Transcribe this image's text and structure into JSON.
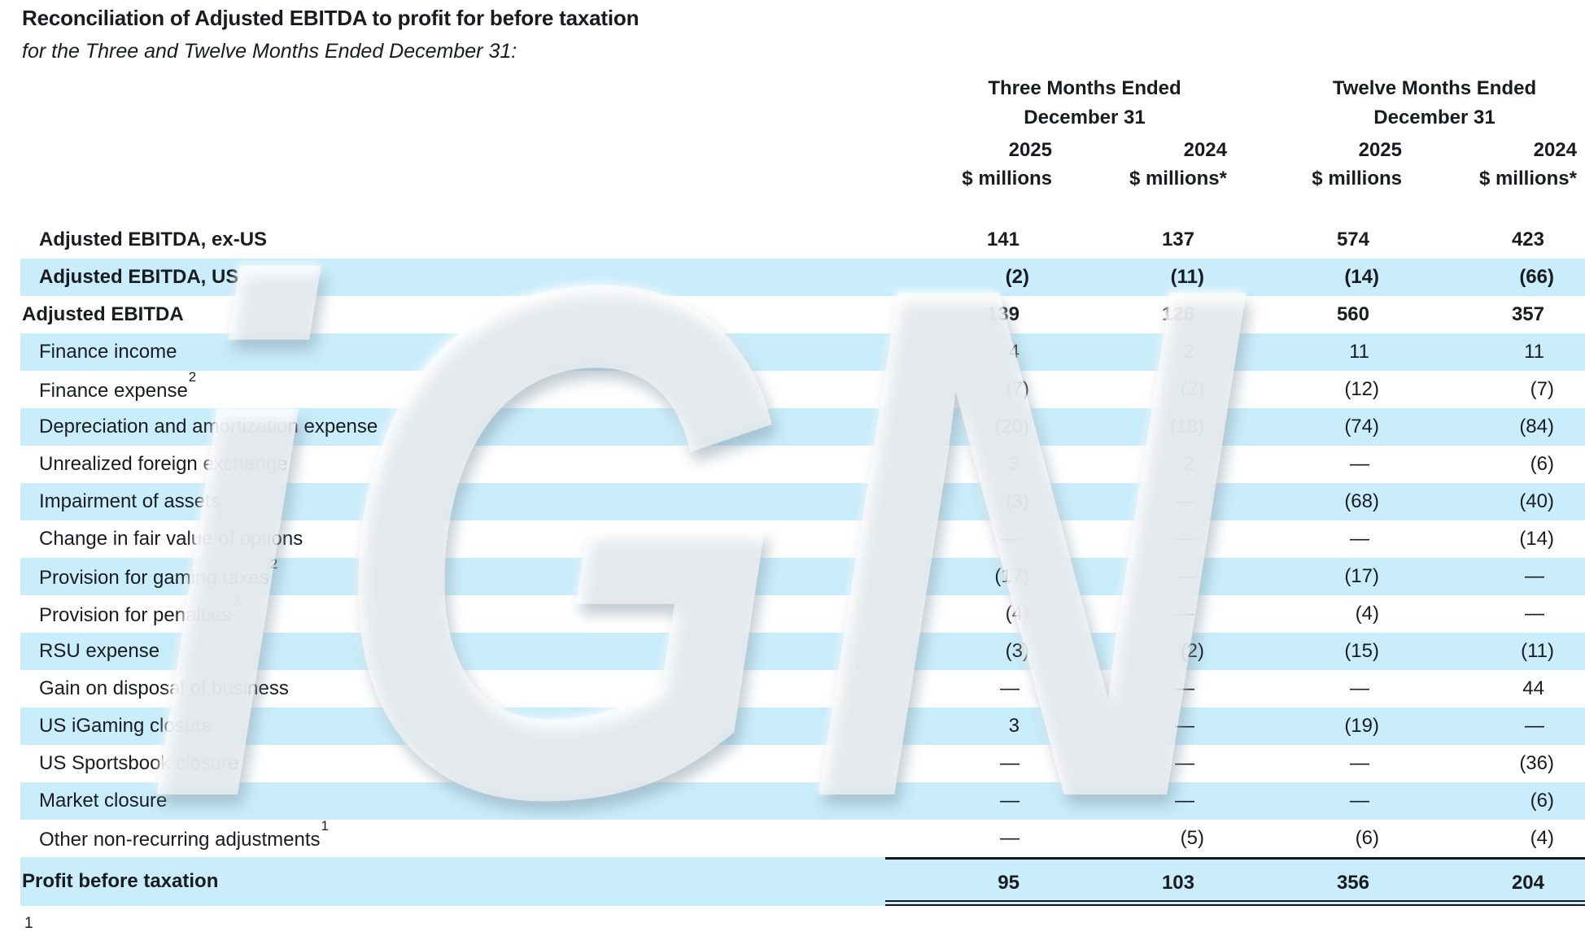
{
  "title": "Reconciliation of Adjusted EBITDA to profit for before taxation",
  "subtitle": "for the Three and Twelve Months Ended December 31:",
  "watermark": {
    "text": "iGN"
  },
  "footnote_marker": "1",
  "colors": {
    "row_highlight": "#c9edfb",
    "text": "#181c21",
    "rule": "#14181c"
  },
  "table": {
    "groups": [
      {
        "line1": "Three Months Ended",
        "line2": "December 31"
      },
      {
        "line1": "Twelve Months Ended",
        "line2": "December 31"
      }
    ],
    "columns": [
      {
        "year": "2025",
        "unit": "$ millions"
      },
      {
        "year": "2024",
        "unit": "$ millions*"
      },
      {
        "year": "2025",
        "unit": "$ millions"
      },
      {
        "year": "2024",
        "unit": "$ millions*"
      }
    ],
    "rows": [
      {
        "label": "Adjusted EBITDA, ex-US",
        "values": [
          "141",
          "137",
          "574",
          "423"
        ],
        "bold": true,
        "indent": true
      },
      {
        "label": "Adjusted EBITDA, US",
        "values": [
          "(2)",
          "(11)",
          "(14)",
          "(66)"
        ],
        "bold": true,
        "indent": true
      },
      {
        "label": "Adjusted EBITDA",
        "values": [
          "139",
          "126",
          "560",
          "357"
        ],
        "bold": true,
        "indent": false
      },
      {
        "label": "Finance income",
        "values": [
          "4",
          "2",
          "11",
          "11"
        ],
        "indent": true
      },
      {
        "label": "Finance expense",
        "sup": "2",
        "values": [
          "(7)",
          "(2)",
          "(12)",
          "(7)"
        ],
        "indent": true
      },
      {
        "label": "Depreciation and amortization expense",
        "values": [
          "(20)",
          "(18)",
          "(74)",
          "(84)"
        ],
        "indent": true
      },
      {
        "label": "Unrealized foreign exchange",
        "values": [
          "3",
          "2",
          "—",
          "(6)"
        ],
        "indent": true
      },
      {
        "label": "Impairment of assets",
        "values": [
          "(3)",
          "—",
          "(68)",
          "(40)"
        ],
        "indent": true
      },
      {
        "label": "Change in fair value of options",
        "values": [
          "—",
          "—",
          "—",
          "(14)"
        ],
        "indent": true
      },
      {
        "label": "Provision for gaming taxes",
        "sup": "2",
        "values": [
          "(17)",
          "—",
          "(17)",
          "—"
        ],
        "indent": true
      },
      {
        "label": "Provision for penalties",
        "sup": "2",
        "values": [
          "(4)",
          "—",
          "(4)",
          "—"
        ],
        "indent": true
      },
      {
        "label": "RSU expense",
        "values": [
          "(3)",
          "(2)",
          "(15)",
          "(11)"
        ],
        "indent": true
      },
      {
        "label": "Gain on disposal of business",
        "values": [
          "—",
          "—",
          "—",
          "44"
        ],
        "indent": true
      },
      {
        "label": "US iGaming closure",
        "values": [
          "3",
          "—",
          "(19)",
          "—"
        ],
        "indent": true
      },
      {
        "label": "US Sportsbook closure",
        "values": [
          "—",
          "—",
          "—",
          "(36)"
        ],
        "indent": true
      },
      {
        "label": "Market closure",
        "values": [
          "—",
          "—",
          "—",
          "(6)"
        ],
        "indent": true
      },
      {
        "label": "Other non-recurring adjustments",
        "sup": "1",
        "values": [
          "—",
          "(5)",
          "(6)",
          "(4)"
        ],
        "indent": true
      },
      {
        "label": "Profit before taxation",
        "values": [
          "95",
          "103",
          "356",
          "204"
        ],
        "bold": true,
        "indent": false,
        "total": true
      }
    ]
  }
}
